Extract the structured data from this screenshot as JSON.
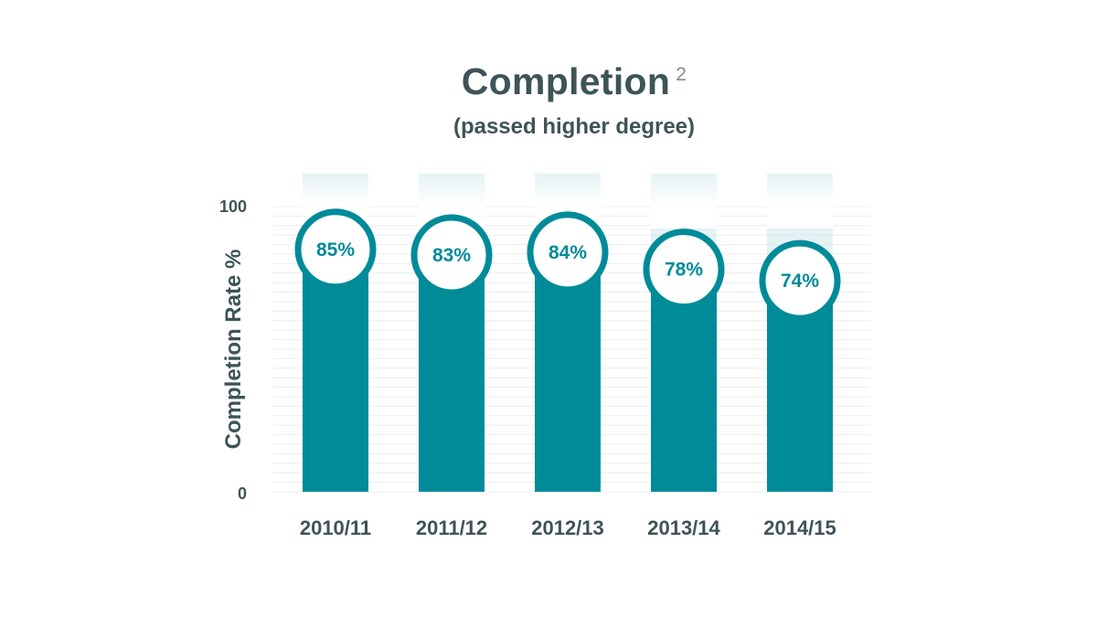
{
  "title": "Completion",
  "title_note": "2",
  "subtitle": "(passed higher degree)",
  "colors": {
    "bar": "#008b99",
    "background_band": "#cfe9ec",
    "text": "#3e5457",
    "gridline": "#e8eeef"
  },
  "chart_data": {
    "type": "bar",
    "title": "Completion",
    "subtitle": "(passed higher degree)",
    "categories": [
      "2010/11",
      "2011/12",
      "2012/13",
      "2013/14",
      "2014/15"
    ],
    "values": [
      85,
      83,
      84,
      78,
      74
    ],
    "data_labels": [
      "85%",
      "83%",
      "84%",
      "78%",
      "74%"
    ],
    "xlabel": "",
    "ylabel": "Completion Rate %",
    "ylim": [
      0,
      100
    ],
    "yticks": [
      "100",
      "0"
    ],
    "grid": true,
    "legend": "none"
  }
}
